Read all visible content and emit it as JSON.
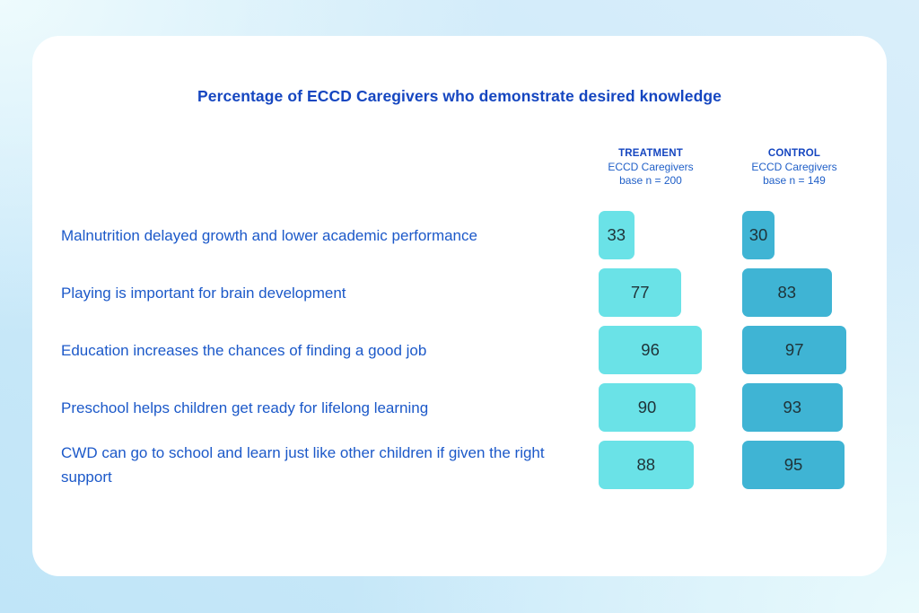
{
  "title": "Percentage of ECCD Caregivers who demonstrate desired knowledge",
  "columns": [
    {
      "name": "TREATMENT",
      "group": "ECCD Caregivers",
      "base": "base n = 200",
      "bar_color": "#6AE2E7"
    },
    {
      "name": "CONTROL",
      "group": "ECCD Caregivers",
      "base": "base n = 149",
      "bar_color": "#3FB4D4"
    }
  ],
  "rows": [
    {
      "label": "Malnutrition delayed growth and lower academic performance",
      "treatment": 33,
      "control": 30
    },
    {
      "label": "Playing is important for brain development",
      "treatment": 77,
      "control": 83
    },
    {
      "label": "Education increases the chances of finding a good job",
      "treatment": 96,
      "control": 97
    },
    {
      "label": "Preschool helps children get ready for lifelong learning",
      "treatment": 90,
      "control": 93
    },
    {
      "label": "CWD can go to school and learn just like other children if given the right support",
      "treatment": 88,
      "control": 95
    }
  ],
  "palette": {
    "title_color": "#1546c0",
    "label_color": "#1c59c9",
    "header_title_color": "#1546c0",
    "header_sub_color": "#2160c8",
    "treatment_bar_color": "#6AE2E7",
    "control_bar_color": "#3FB4D4",
    "bar_value_color": "#1f3338",
    "card_color": "#ffffff",
    "background_light": "#eefbfd",
    "background_blue": "#c0e5f8"
  },
  "chart_data": {
    "type": "bar",
    "orientation": "horizontal",
    "title": "Percentage of ECCD Caregivers who demonstrate desired knowledge",
    "categories": [
      "Malnutrition delayed growth and lower academic performance",
      "Playing is important for brain development",
      "Education increases the chances of finding a good job",
      "Preschool helps children get ready for lifelong learning",
      "CWD can go to school and learn just like other children if given the right support"
    ],
    "series": [
      {
        "name": "TREATMENT — ECCD Caregivers, base n = 200",
        "values": [
          33,
          77,
          96,
          90,
          88
        ],
        "color": "#6AE2E7"
      },
      {
        "name": "CONTROL — ECCD Caregivers, base n = 149",
        "values": [
          30,
          83,
          97,
          93,
          95
        ],
        "color": "#3FB4D4"
      }
    ],
    "value_range": [
      0,
      100
    ],
    "unit": "percent",
    "grid": false,
    "data_labels": "inside bars",
    "legend_position": "column headers above each bar group"
  }
}
